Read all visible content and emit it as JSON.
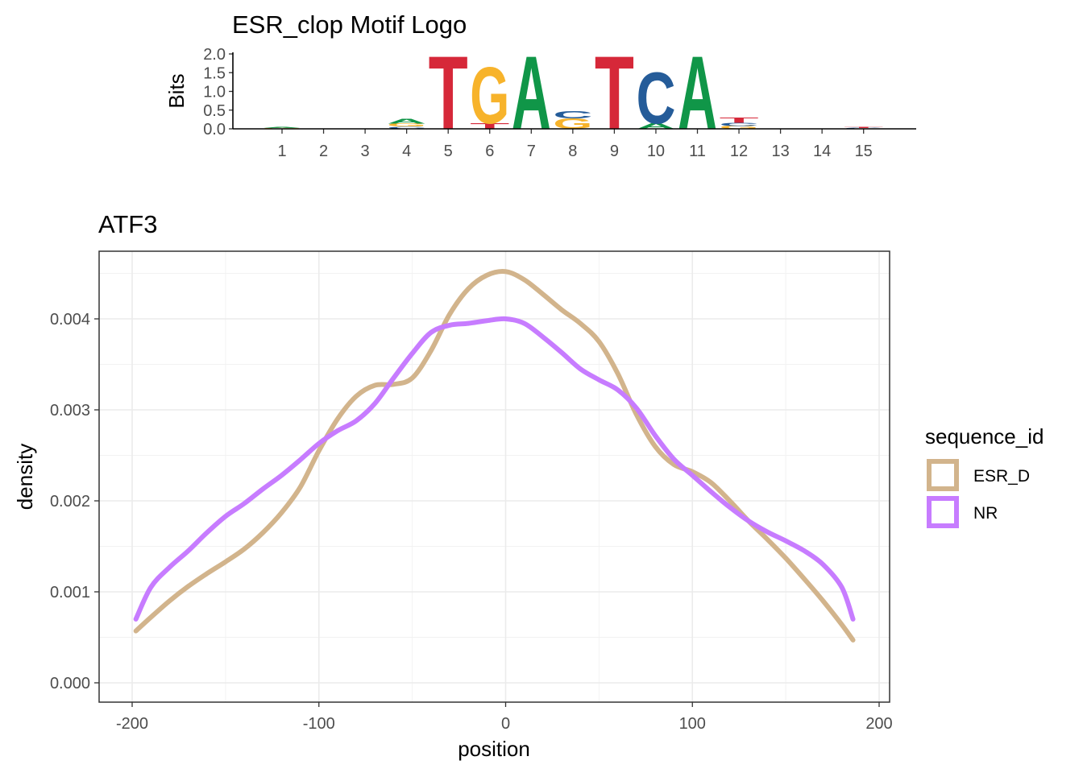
{
  "chart_data": [
    {
      "type": "sequence-logo",
      "title": "ESR_clop Motif Logo",
      "ylabel": "Bits",
      "ylim": [
        0,
        2.0
      ],
      "yticks": [
        "0.0",
        "0.5",
        "1.0",
        "1.5",
        "2.0"
      ],
      "positions": [
        "1",
        "2",
        "3",
        "4",
        "5",
        "6",
        "7",
        "8",
        "9",
        "10",
        "11",
        "12",
        "13",
        "14",
        "15"
      ],
      "letter_colors": {
        "A": "#109648",
        "C": "#255C99",
        "G": "#F7B32B",
        "T": "#D62839"
      },
      "columns": [
        {
          "position": "1",
          "stack": [
            {
              "letter": "G",
              "bits": 0.02
            },
            {
              "letter": "A",
              "bits": 0.02
            }
          ]
        },
        {
          "position": "2",
          "stack": []
        },
        {
          "position": "3",
          "stack": []
        },
        {
          "position": "4",
          "stack": [
            {
              "letter": "C",
              "bits": 0.06
            },
            {
              "letter": "G",
              "bits": 0.08
            },
            {
              "letter": "A",
              "bits": 0.12
            }
          ]
        },
        {
          "position": "5",
          "stack": [
            {
              "letter": "T",
              "bits": 2.0
            }
          ]
        },
        {
          "position": "6",
          "stack": [
            {
              "letter": "T",
              "bits": 0.15
            },
            {
              "letter": "G",
              "bits": 1.55
            }
          ]
        },
        {
          "position": "7",
          "stack": [
            {
              "letter": "A",
              "bits": 2.0
            }
          ]
        },
        {
          "position": "8",
          "stack": [
            {
              "letter": "G",
              "bits": 0.28
            },
            {
              "letter": "C",
              "bits": 0.2
            }
          ]
        },
        {
          "position": "9",
          "stack": [
            {
              "letter": "T",
              "bits": 2.0
            }
          ]
        },
        {
          "position": "10",
          "stack": [
            {
              "letter": "A",
              "bits": 0.15
            },
            {
              "letter": "C",
              "bits": 1.4
            }
          ]
        },
        {
          "position": "11",
          "stack": [
            {
              "letter": "A",
              "bits": 2.0
            }
          ]
        },
        {
          "position": "12",
          "stack": [
            {
              "letter": "G",
              "bits": 0.08
            },
            {
              "letter": "C",
              "bits": 0.08
            },
            {
              "letter": "T",
              "bits": 0.14
            }
          ]
        },
        {
          "position": "13",
          "stack": []
        },
        {
          "position": "14",
          "stack": []
        },
        {
          "position": "15",
          "stack": [
            {
              "letter": "C",
              "bits": 0.02
            },
            {
              "letter": "T",
              "bits": 0.02
            }
          ]
        }
      ]
    },
    {
      "type": "line",
      "title": "ATF3",
      "xlabel": "position",
      "ylabel": "density",
      "xlim": [
        -200,
        200
      ],
      "ylim": [
        0,
        0.0046
      ],
      "xticks": [
        "-200",
        "-100",
        "0",
        "100",
        "200"
      ],
      "yticks": [
        "0.000",
        "0.001",
        "0.002",
        "0.003",
        "0.004"
      ],
      "grid": true,
      "legend": {
        "title": "sequence_id",
        "position": "right"
      },
      "series": [
        {
          "name": "ESR_D",
          "color": "#D2B48C",
          "x": [
            -198,
            -190,
            -180,
            -170,
            -160,
            -150,
            -140,
            -130,
            -120,
            -110,
            -100,
            -90,
            -80,
            -70,
            -60,
            -50,
            -40,
            -30,
            -20,
            -10,
            0,
            10,
            20,
            30,
            40,
            50,
            60,
            70,
            80,
            90,
            100,
            110,
            120,
            130,
            140,
            150,
            160,
            170,
            180,
            186
          ],
          "values": [
            0.00057,
            0.00072,
            0.0009,
            0.00106,
            0.0012,
            0.00133,
            0.00147,
            0.00165,
            0.00187,
            0.00215,
            0.00255,
            0.0029,
            0.00315,
            0.00327,
            0.00328,
            0.00335,
            0.00365,
            0.00405,
            0.00433,
            0.00448,
            0.00452,
            0.00443,
            0.00427,
            0.0041,
            0.00395,
            0.00375,
            0.0034,
            0.00295,
            0.0026,
            0.0024,
            0.00232,
            0.0022,
            0.002,
            0.00178,
            0.00158,
            0.00137,
            0.00114,
            0.0009,
            0.00064,
            0.00047
          ]
        },
        {
          "name": "NR",
          "color": "#C77CFF",
          "x": [
            -198,
            -190,
            -180,
            -170,
            -160,
            -150,
            -140,
            -130,
            -120,
            -110,
            -100,
            -90,
            -80,
            -70,
            -60,
            -50,
            -40,
            -30,
            -20,
            -10,
            0,
            10,
            20,
            30,
            40,
            50,
            60,
            70,
            80,
            90,
            100,
            110,
            120,
            130,
            140,
            150,
            160,
            170,
            180,
            186
          ],
          "values": [
            0.0007,
            0.00105,
            0.00127,
            0.00145,
            0.00165,
            0.00183,
            0.00197,
            0.00213,
            0.00228,
            0.00245,
            0.00263,
            0.00277,
            0.00288,
            0.00307,
            0.00335,
            0.00362,
            0.00385,
            0.00393,
            0.00395,
            0.00398,
            0.004,
            0.00395,
            0.0038,
            0.00363,
            0.00345,
            0.00333,
            0.00322,
            0.00302,
            0.00272,
            0.00246,
            0.00228,
            0.0021,
            0.00193,
            0.00178,
            0.00166,
            0.00156,
            0.00145,
            0.0013,
            0.00105,
            0.0007
          ]
        }
      ]
    }
  ]
}
